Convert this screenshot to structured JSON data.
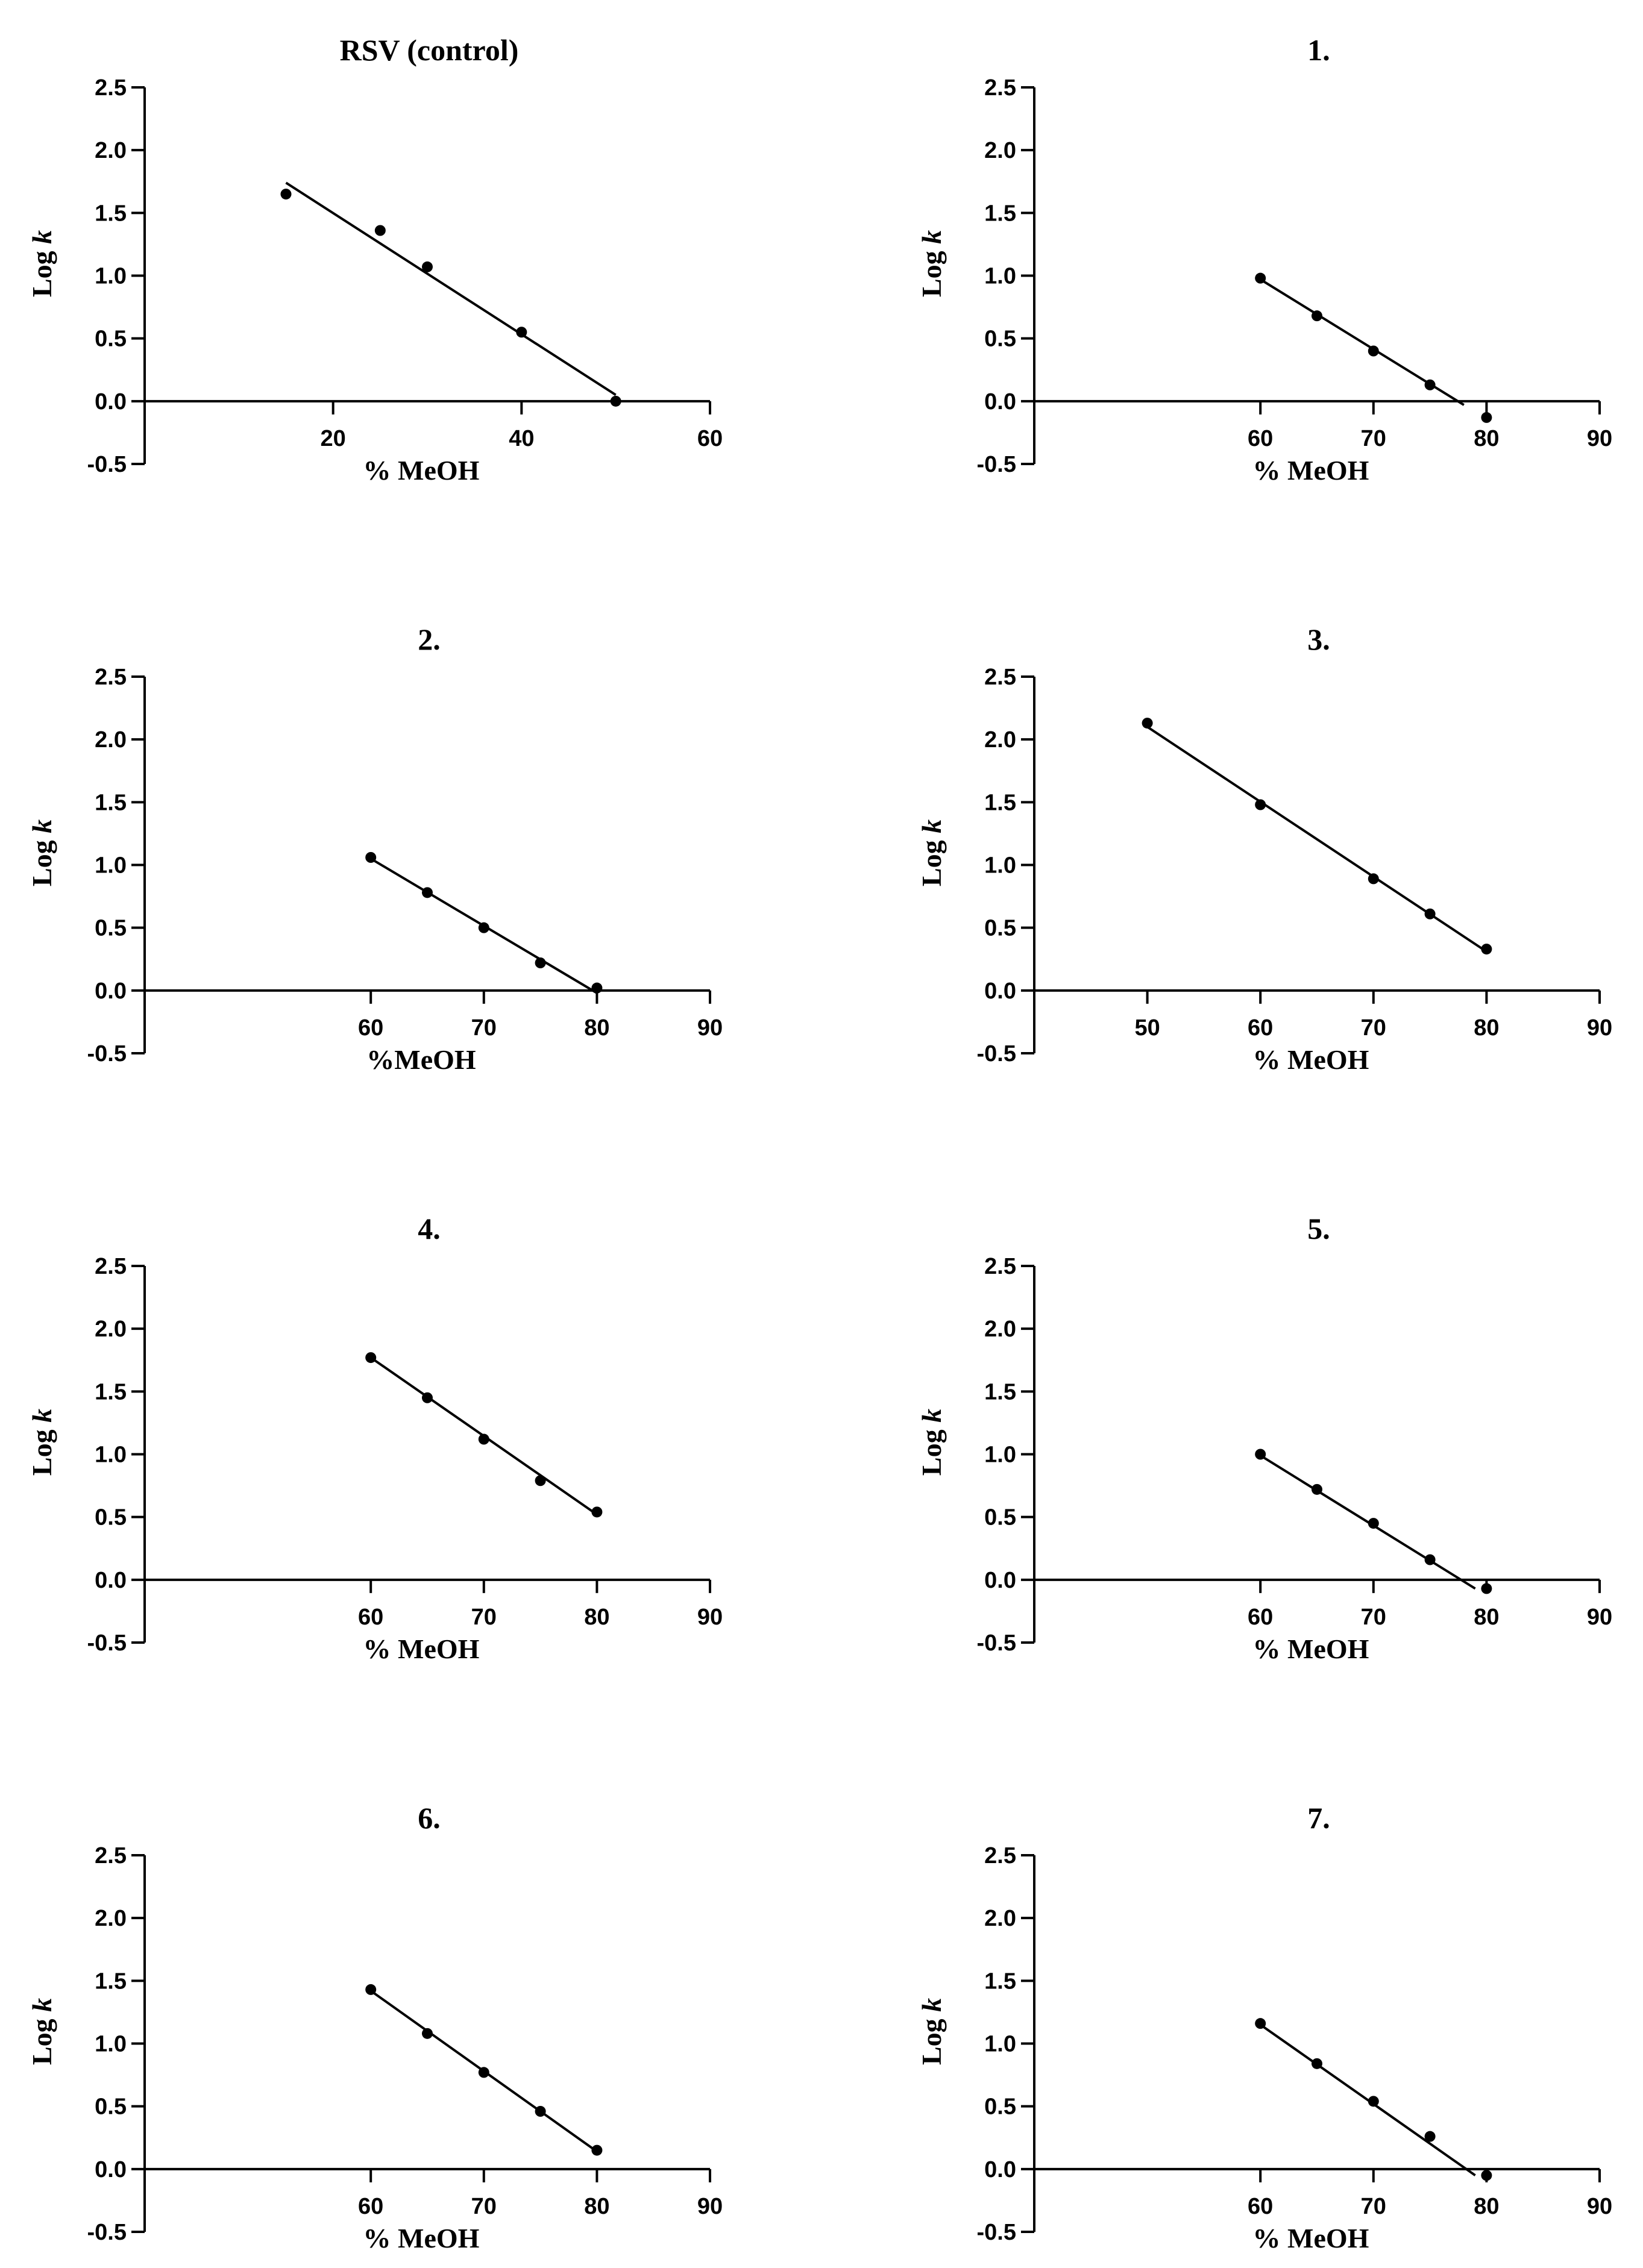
{
  "chart_data": [
    {
      "type": "scatter",
      "title": "RSV (control)",
      "xlabel": "% MeOH",
      "ylabel_main": "Log ",
      "ylabel_italic": "k",
      "xlim": [
        0,
        60
      ],
      "ylim": [
        -0.5,
        2.5
      ],
      "xticks": [
        20,
        40,
        60
      ],
      "yticks": [
        -0.5,
        0.0,
        0.5,
        1.0,
        1.5,
        2.0,
        2.5
      ],
      "ytick_labels": [
        "-0.5",
        "0.0",
        "0.5",
        "1.0",
        "1.5",
        "2.0",
        "2.5"
      ],
      "points": [
        {
          "x": 15,
          "y": 1.65
        },
        {
          "x": 25,
          "y": 1.36
        },
        {
          "x": 30,
          "y": 1.07
        },
        {
          "x": 40,
          "y": 0.55
        },
        {
          "x": 50,
          "y": 0.0
        }
      ],
      "fit": [
        {
          "x": 15,
          "y": 1.74
        },
        {
          "x": 50,
          "y": 0.05
        }
      ]
    },
    {
      "type": "scatter",
      "title": "1.",
      "xlabel": "% MeOH",
      "ylabel_main": "Log ",
      "ylabel_italic": "k",
      "xlim": [
        40,
        90
      ],
      "ylim": [
        -0.5,
        2.5
      ],
      "xticks": [
        60,
        70,
        80,
        90
      ],
      "yticks": [
        -0.5,
        0.0,
        0.5,
        1.0,
        1.5,
        2.0,
        2.5
      ],
      "ytick_labels": [
        "-0.5",
        "0.0",
        "0.5",
        "1.0",
        "1.5",
        "2.0",
        "2.5"
      ],
      "points": [
        {
          "x": 60,
          "y": 0.98
        },
        {
          "x": 65,
          "y": 0.68
        },
        {
          "x": 70,
          "y": 0.4
        },
        {
          "x": 75,
          "y": 0.13
        },
        {
          "x": 80,
          "y": -0.13
        }
      ],
      "fit": [
        {
          "x": 60,
          "y": 0.97
        },
        {
          "x": 78,
          "y": -0.03
        }
      ]
    },
    {
      "type": "scatter",
      "title": "2.",
      "xlabel": "%MeOH",
      "ylabel_main": "Log ",
      "ylabel_italic": "k",
      "xlim": [
        40,
        90
      ],
      "ylim": [
        -0.5,
        2.5
      ],
      "xticks": [
        60,
        70,
        80,
        90
      ],
      "yticks": [
        -0.5,
        0.0,
        0.5,
        1.0,
        1.5,
        2.0,
        2.5
      ],
      "ytick_labels": [
        "-0.5",
        "0.0",
        "0.5",
        "1.0",
        "1.5",
        "2.0",
        "2.5"
      ],
      "points": [
        {
          "x": 60,
          "y": 1.06
        },
        {
          "x": 65,
          "y": 0.78
        },
        {
          "x": 70,
          "y": 0.5
        },
        {
          "x": 75,
          "y": 0.22
        },
        {
          "x": 80,
          "y": 0.02
        }
      ],
      "fit": [
        {
          "x": 60,
          "y": 1.05
        },
        {
          "x": 80,
          "y": -0.02
        }
      ]
    },
    {
      "type": "scatter",
      "title": "3.",
      "xlabel": "% MeOH",
      "ylabel_main": "Log ",
      "ylabel_italic": "k",
      "xlim": [
        40,
        90
      ],
      "ylim": [
        -0.5,
        2.5
      ],
      "xticks": [
        50,
        60,
        70,
        80,
        90
      ],
      "yticks": [
        -0.5,
        0.0,
        0.5,
        1.0,
        1.5,
        2.0,
        2.5
      ],
      "ytick_labels": [
        "-0.5",
        "0.0",
        "0.5",
        "1.0",
        "1.5",
        "2.0",
        "2.5"
      ],
      "points": [
        {
          "x": 50,
          "y": 2.13
        },
        {
          "x": 60,
          "y": 1.48
        },
        {
          "x": 70,
          "y": 0.89
        },
        {
          "x": 75,
          "y": 0.61
        },
        {
          "x": 80,
          "y": 0.33
        }
      ],
      "fit": [
        {
          "x": 50,
          "y": 2.1
        },
        {
          "x": 80,
          "y": 0.31
        }
      ]
    },
    {
      "type": "scatter",
      "title": "4.",
      "xlabel": "% MeOH",
      "ylabel_main": "Log ",
      "ylabel_italic": "k",
      "xlim": [
        40,
        90
      ],
      "ylim": [
        -0.5,
        2.5
      ],
      "xticks": [
        60,
        70,
        80,
        90
      ],
      "yticks": [
        -0.5,
        0.0,
        0.5,
        1.0,
        1.5,
        2.0,
        2.5
      ],
      "ytick_labels": [
        "-0.5",
        "0.0",
        "0.5",
        "1.0",
        "1.5",
        "2.0",
        "2.5"
      ],
      "points": [
        {
          "x": 60,
          "y": 1.77
        },
        {
          "x": 65,
          "y": 1.45
        },
        {
          "x": 70,
          "y": 1.12
        },
        {
          "x": 75,
          "y": 0.79
        },
        {
          "x": 80,
          "y": 0.54
        }
      ],
      "fit": [
        {
          "x": 60,
          "y": 1.77
        },
        {
          "x": 80,
          "y": 0.52
        }
      ]
    },
    {
      "type": "scatter",
      "title": "5.",
      "xlabel": "% MeOH",
      "ylabel_main": "Log ",
      "ylabel_italic": "k",
      "xlim": [
        40,
        90
      ],
      "ylim": [
        -0.5,
        2.5
      ],
      "xticks": [
        60,
        70,
        80,
        90
      ],
      "yticks": [
        -0.5,
        0.0,
        0.5,
        1.0,
        1.5,
        2.0,
        2.5
      ],
      "ytick_labels": [
        "-0.5",
        "0.0",
        "0.5",
        "1.0",
        "1.5",
        "2.0",
        "2.5"
      ],
      "points": [
        {
          "x": 60,
          "y": 1.0
        },
        {
          "x": 65,
          "y": 0.72
        },
        {
          "x": 70,
          "y": 0.45
        },
        {
          "x": 75,
          "y": 0.16
        },
        {
          "x": 80,
          "y": -0.07
        }
      ],
      "fit": [
        {
          "x": 60,
          "y": 0.99
        },
        {
          "x": 79,
          "y": -0.07
        }
      ]
    },
    {
      "type": "scatter",
      "title": "6.",
      "xlabel": "% MeOH",
      "ylabel_main": "Log ",
      "ylabel_italic": "k",
      "xlim": [
        40,
        90
      ],
      "ylim": [
        -0.5,
        2.5
      ],
      "xticks": [
        60,
        70,
        80,
        90
      ],
      "yticks": [
        -0.5,
        0.0,
        0.5,
        1.0,
        1.5,
        2.0,
        2.5
      ],
      "ytick_labels": [
        "-0.5",
        "0.0",
        "0.5",
        "1.0",
        "1.5",
        "2.0",
        "2.5"
      ],
      "points": [
        {
          "x": 60,
          "y": 1.43
        },
        {
          "x": 65,
          "y": 1.08
        },
        {
          "x": 70,
          "y": 0.77
        },
        {
          "x": 75,
          "y": 0.46
        },
        {
          "x": 80,
          "y": 0.15
        }
      ],
      "fit": [
        {
          "x": 60,
          "y": 1.42
        },
        {
          "x": 80,
          "y": 0.14
        }
      ]
    },
    {
      "type": "scatter",
      "title": "7.",
      "xlabel": "% MeOH",
      "ylabel_main": "Log ",
      "ylabel_italic": "k",
      "xlim": [
        40,
        90
      ],
      "ylim": [
        -0.5,
        2.5
      ],
      "xticks": [
        60,
        70,
        80,
        90
      ],
      "yticks": [
        -0.5,
        0.0,
        0.5,
        1.0,
        1.5,
        2.0,
        2.5
      ],
      "ytick_labels": [
        "-0.5",
        "0.0",
        "0.5",
        "1.0",
        "1.5",
        "2.0",
        "2.5"
      ],
      "points": [
        {
          "x": 60,
          "y": 1.16
        },
        {
          "x": 65,
          "y": 0.84
        },
        {
          "x": 70,
          "y": 0.54
        },
        {
          "x": 75,
          "y": 0.26
        },
        {
          "x": 80,
          "y": -0.05
        }
      ],
      "fit": [
        {
          "x": 60,
          "y": 1.15
        },
        {
          "x": 79,
          "y": -0.05
        }
      ]
    }
  ]
}
